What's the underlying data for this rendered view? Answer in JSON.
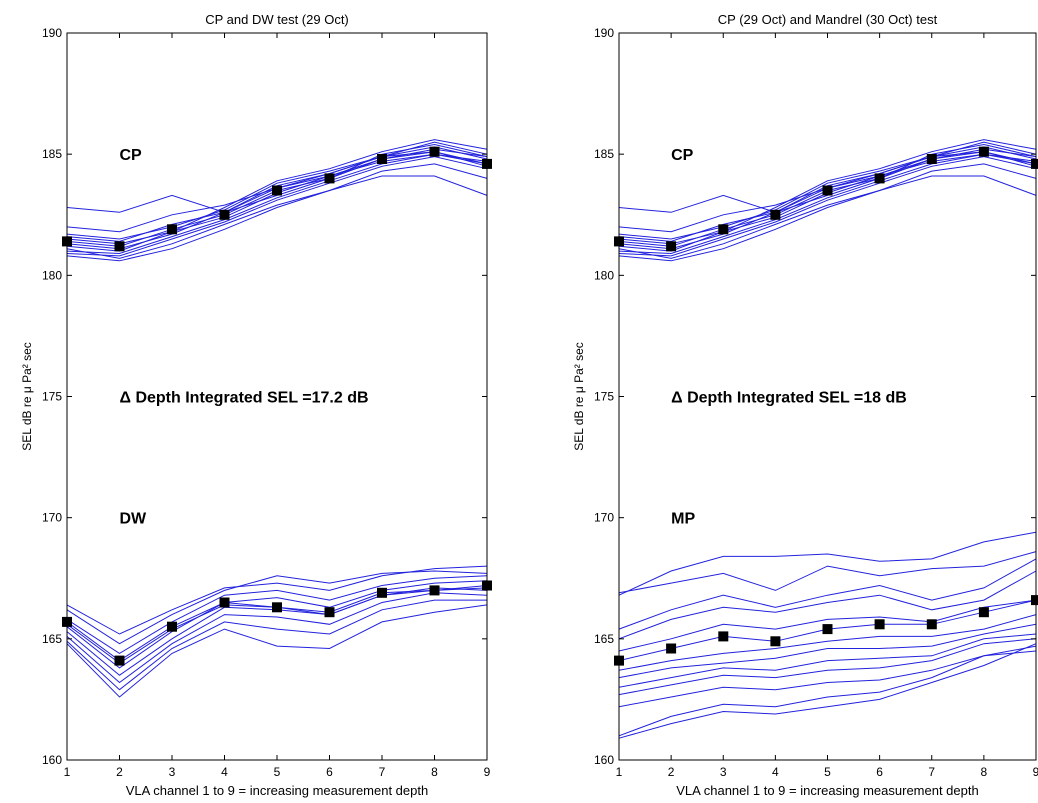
{
  "chart_data": [
    {
      "type": "line",
      "title": "CP and DW test (29 Oct)",
      "xlabel": "VLA channel 1 to 9 = increasing measurement depth",
      "ylabel": "SEL dB re μ Pa² sec",
      "xlim": [
        1,
        9
      ],
      "ylim": [
        160,
        190
      ],
      "x": [
        1,
        2,
        3,
        4,
        5,
        6,
        7,
        8,
        9
      ],
      "xticks": [
        1,
        2,
        3,
        4,
        5,
        6,
        7,
        8,
        9
      ],
      "yticks": [
        160,
        165,
        170,
        175,
        180,
        185,
        190
      ],
      "annotations": [
        "CP",
        "Δ Depth Integrated SEL =17.2 dB",
        "DW"
      ],
      "annotation_values": [
        {
          "text": "CP",
          "x": 2.0,
          "y": 185
        },
        {
          "text": "Δ Depth Integrated SEL =17.2 dB",
          "x": 2.0,
          "y": 175
        },
        {
          "text": "DW",
          "x": 2.0,
          "y": 170
        }
      ],
      "series": [
        {
          "values": [
            181.4,
            181.2,
            181.9,
            182.5,
            183.5,
            184.0,
            184.8,
            185.1,
            184.6
          ]
        },
        {
          "values": [
            182.8,
            182.6,
            183.3,
            182.6,
            183.3,
            184.0,
            185.0,
            185.4,
            184.9
          ]
        },
        {
          "values": [
            182.0,
            181.8,
            182.5,
            182.9,
            183.6,
            184.2,
            184.9,
            185.3,
            184.8
          ]
        },
        {
          "values": [
            181.7,
            181.5,
            182.0,
            182.7,
            183.8,
            184.3,
            184.9,
            185.5,
            185.0
          ]
        },
        {
          "values": [
            181.2,
            181.0,
            181.8,
            182.4,
            183.4,
            184.1,
            184.8,
            185.2,
            184.9
          ]
        },
        {
          "values": [
            181.0,
            180.9,
            181.6,
            182.3,
            183.2,
            183.9,
            184.6,
            185.0,
            184.7
          ]
        },
        {
          "values": [
            180.9,
            180.8,
            181.5,
            182.2,
            183.1,
            183.8,
            184.5,
            184.9,
            184.4
          ]
        },
        {
          "values": [
            181.5,
            181.3,
            181.8,
            182.8,
            183.9,
            184.4,
            185.1,
            185.6,
            185.2
          ]
        },
        {
          "values": [
            181.1,
            180.7,
            181.3,
            182.1,
            182.9,
            183.5,
            184.3,
            184.6,
            184.0
          ]
        },
        {
          "values": [
            181.3,
            181.1,
            181.7,
            182.6,
            183.7,
            184.2,
            184.9,
            185.1,
            184.5
          ]
        },
        {
          "values": [
            180.8,
            180.6,
            181.1,
            181.9,
            182.8,
            183.5,
            184.1,
            184.1,
            183.3
          ]
        },
        {
          "values": [
            181.6,
            181.4,
            182.1,
            182.6,
            183.6,
            184.1,
            184.7,
            185.0,
            184.6
          ]
        },
        {
          "values": [
            165.7,
            164.1,
            165.5,
            166.5,
            166.3,
            166.1,
            166.9,
            167.0,
            167.2
          ]
        },
        {
          "values": [
            166.4,
            165.2,
            166.2,
            167.1,
            167.3,
            167.0,
            167.6,
            167.9,
            168.0
          ]
        },
        {
          "values": [
            166.2,
            164.8,
            166.0,
            167.0,
            167.6,
            167.3,
            167.7,
            167.8,
            167.7
          ]
        },
        {
          "values": [
            165.8,
            164.4,
            165.7,
            166.8,
            167.0,
            166.6,
            167.2,
            167.5,
            167.6
          ]
        },
        {
          "values": [
            165.5,
            163.8,
            165.3,
            166.5,
            166.7,
            166.3,
            167.0,
            167.3,
            167.4
          ]
        },
        {
          "values": [
            165.3,
            163.5,
            165.0,
            166.3,
            166.2,
            166.0,
            166.8,
            167.1,
            167.0
          ]
        },
        {
          "values": [
            165.1,
            163.2,
            164.8,
            166.0,
            165.9,
            165.6,
            166.5,
            166.9,
            166.8
          ]
        },
        {
          "values": [
            164.9,
            162.9,
            164.6,
            165.7,
            165.4,
            165.2,
            166.2,
            166.6,
            166.6
          ]
        },
        {
          "values": [
            164.8,
            162.6,
            164.4,
            165.4,
            164.7,
            164.6,
            165.7,
            166.1,
            166.4
          ]
        },
        {
          "values": [
            165.6,
            164.0,
            165.4,
            166.4,
            166.3,
            166.0,
            166.8,
            167.0,
            167.1
          ]
        }
      ],
      "means": [
        181.4,
        181.2,
        181.9,
        182.5,
        183.5,
        184.0,
        184.8,
        185.1,
        184.6,
        165.7,
        164.1,
        165.5,
        166.5,
        166.3,
        166.1,
        166.9,
        167.0,
        167.2
      ]
    },
    {
      "type": "line",
      "title": "CP (29 Oct) and Mandrel (30 Oct) test",
      "xlabel": "VLA channel 1 to 9 = increasing measurement depth",
      "ylabel": "SEL dB re μ Pa² sec",
      "xlim": [
        1,
        9
      ],
      "ylim": [
        160,
        190
      ],
      "x": [
        1,
        2,
        3,
        4,
        5,
        6,
        7,
        8,
        9
      ],
      "xticks": [
        1,
        2,
        3,
        4,
        5,
        6,
        7,
        8,
        9
      ],
      "yticks": [
        160,
        165,
        170,
        175,
        180,
        185,
        190
      ],
      "annotations": [
        "CP",
        "Δ Depth Integrated SEL =18 dB",
        "MP"
      ],
      "annotation_values": [
        {
          "text": "CP",
          "x": 2.0,
          "y": 185
        },
        {
          "text": "Δ Depth Integrated SEL =18 dB",
          "x": 2.0,
          "y": 175
        },
        {
          "text": "MP",
          "x": 2.0,
          "y": 170
        }
      ],
      "series": [
        {
          "values": [
            181.4,
            181.2,
            181.9,
            182.5,
            183.5,
            184.0,
            184.8,
            185.1,
            184.6
          ]
        },
        {
          "values": [
            182.8,
            182.6,
            183.3,
            182.6,
            183.3,
            184.0,
            185.0,
            185.4,
            184.9
          ]
        },
        {
          "values": [
            182.0,
            181.8,
            182.5,
            182.9,
            183.6,
            184.2,
            184.9,
            185.3,
            184.8
          ]
        },
        {
          "values": [
            181.7,
            181.5,
            182.0,
            182.7,
            183.8,
            184.3,
            184.9,
            185.5,
            185.0
          ]
        },
        {
          "values": [
            181.2,
            181.0,
            181.8,
            182.4,
            183.4,
            184.1,
            184.8,
            185.2,
            184.9
          ]
        },
        {
          "values": [
            181.0,
            180.9,
            181.6,
            182.3,
            183.2,
            183.9,
            184.6,
            185.0,
            184.7
          ]
        },
        {
          "values": [
            180.9,
            180.8,
            181.5,
            182.2,
            183.1,
            183.8,
            184.5,
            184.9,
            184.4
          ]
        },
        {
          "values": [
            181.5,
            181.3,
            181.8,
            182.8,
            183.9,
            184.4,
            185.1,
            185.6,
            185.2
          ]
        },
        {
          "values": [
            181.1,
            180.7,
            181.3,
            182.1,
            182.9,
            183.5,
            184.3,
            184.6,
            184.0
          ]
        },
        {
          "values": [
            181.3,
            181.1,
            181.7,
            182.6,
            183.7,
            184.2,
            184.9,
            185.1,
            184.5
          ]
        },
        {
          "values": [
            180.8,
            180.6,
            181.1,
            181.9,
            182.8,
            183.5,
            184.1,
            184.1,
            183.3
          ]
        },
        {
          "values": [
            181.6,
            181.4,
            182.1,
            182.6,
            183.6,
            184.1,
            184.7,
            185.0,
            184.6
          ]
        },
        {
          "values": [
            166.8,
            167.8,
            168.4,
            168.4,
            168.5,
            168.2,
            168.3,
            169.0,
            169.4
          ]
        },
        {
          "values": [
            166.9,
            167.3,
            167.7,
            167.0,
            168.0,
            167.6,
            167.9,
            168.0,
            168.6
          ]
        },
        {
          "values": [
            165.4,
            166.2,
            166.8,
            166.3,
            166.8,
            167.2,
            166.6,
            167.1,
            168.3
          ]
        },
        {
          "values": [
            165.0,
            165.8,
            166.3,
            166.1,
            166.5,
            166.8,
            166.2,
            166.6,
            167.8
          ]
        },
        {
          "values": [
            164.5,
            165.0,
            165.6,
            165.4,
            165.8,
            165.9,
            165.7,
            166.3,
            166.6
          ]
        },
        {
          "values": [
            164.1,
            164.6,
            165.1,
            164.9,
            165.4,
            165.6,
            165.6,
            166.1,
            166.6
          ]
        },
        {
          "values": [
            163.7,
            164.1,
            164.4,
            164.6,
            164.9,
            165.1,
            165.1,
            165.4,
            166.0
          ]
        },
        {
          "values": [
            163.4,
            163.8,
            164.0,
            164.2,
            164.6,
            164.6,
            164.7,
            165.2,
            165.6
          ]
        },
        {
          "values": [
            163.0,
            163.4,
            163.8,
            163.7,
            164.1,
            164.2,
            164.3,
            165.0,
            165.2
          ]
        },
        {
          "values": [
            162.7,
            163.1,
            163.5,
            163.4,
            163.7,
            163.8,
            164.1,
            164.8,
            165.0
          ]
        },
        {
          "values": [
            162.2,
            162.6,
            163.0,
            162.9,
            163.2,
            163.3,
            163.7,
            164.3,
            164.7
          ]
        },
        {
          "values": [
            161.0,
            161.8,
            162.3,
            162.2,
            162.6,
            162.8,
            163.4,
            164.3,
            164.5
          ]
        },
        {
          "values": [
            160.9,
            161.5,
            162.0,
            161.9,
            162.2,
            162.5,
            163.2,
            163.9,
            164.8
          ]
        }
      ],
      "means": [
        181.4,
        181.2,
        181.9,
        182.5,
        183.5,
        184.0,
        184.8,
        185.1,
        184.6,
        164.1,
        164.6,
        165.1,
        164.9,
        165.4,
        165.6,
        165.6,
        166.1,
        166.6
      ]
    }
  ],
  "colors": {
    "series": "#2222dd",
    "marker": "#000000",
    "axis": "#000000",
    "background": "#ffffff"
  }
}
